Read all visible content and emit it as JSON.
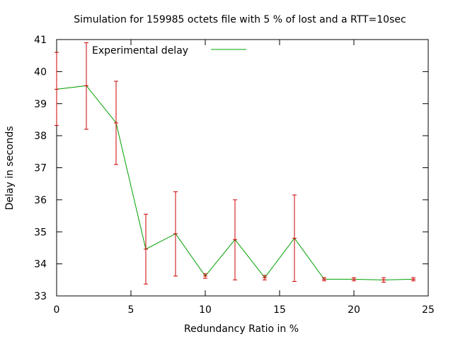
{
  "chart_data": {
    "type": "line",
    "title": "Simulation for 159985 octets file with 5 % of lost and a RTT=10sec",
    "xlabel": "Redundancy Ratio in %",
    "ylabel": "Delay in seconds",
    "xlim": [
      0,
      25
    ],
    "ylim": [
      33,
      41
    ],
    "xticks": [
      0,
      5,
      10,
      15,
      20,
      25
    ],
    "yticks": [
      33,
      34,
      35,
      36,
      37,
      38,
      39,
      40,
      41
    ],
    "grid": false,
    "legend_position": "top-left",
    "series": [
      {
        "name": "Experimental delay",
        "color": "#00a000",
        "errorbar_color": "#cc0000",
        "x": [
          0,
          2,
          4,
          6,
          8,
          10,
          12,
          14,
          16,
          18,
          20,
          22,
          24
        ],
        "y": [
          39.45,
          39.56,
          38.4,
          34.46,
          34.94,
          33.62,
          34.76,
          33.57,
          34.8,
          33.52,
          33.52,
          33.5,
          33.52
        ],
        "yerr_low": [
          38.32,
          38.2,
          37.1,
          33.37,
          33.62,
          33.55,
          33.5,
          33.5,
          33.45,
          33.47,
          33.47,
          33.43,
          33.47
        ],
        "yerr_high": [
          40.6,
          40.9,
          39.7,
          35.55,
          36.25,
          33.69,
          36.0,
          33.64,
          36.15,
          33.57,
          33.57,
          33.57,
          33.57
        ]
      }
    ]
  }
}
